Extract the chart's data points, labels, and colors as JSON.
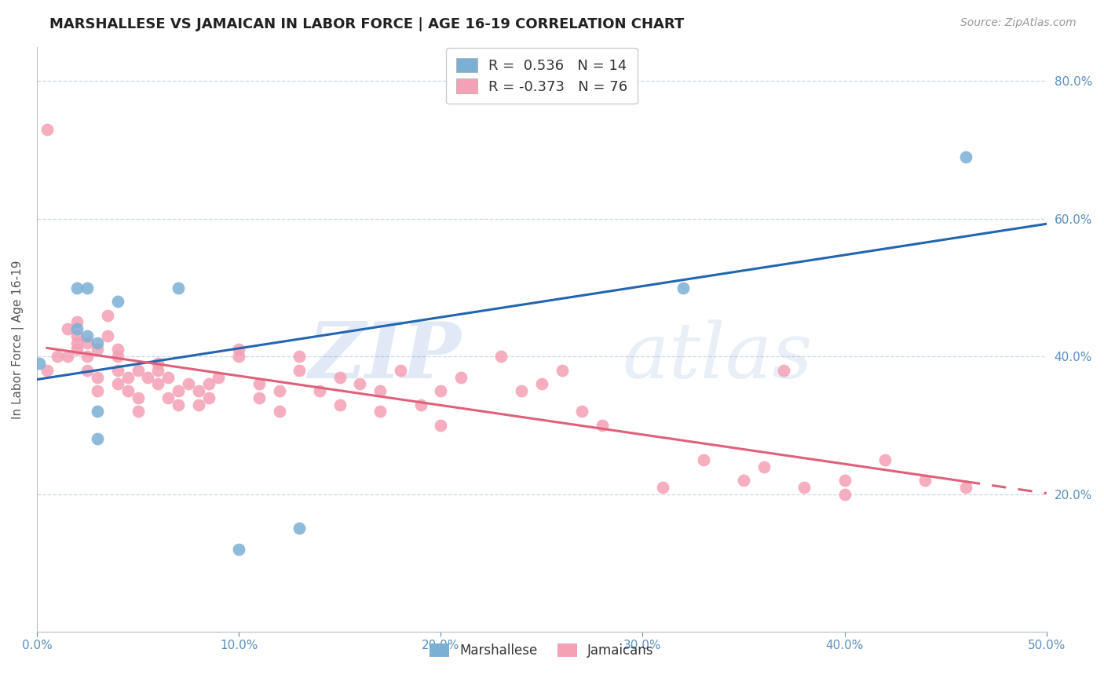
{
  "title": "MARSHALLESE VS JAMAICAN IN LABOR FORCE | AGE 16-19 CORRELATION CHART",
  "source": "Source: ZipAtlas.com",
  "ylabel": "In Labor Force | Age 16-19",
  "xlim": [
    0.0,
    0.5
  ],
  "ylim": [
    0.0,
    0.85
  ],
  "xticks": [
    0.0,
    0.1,
    0.2,
    0.3,
    0.4,
    0.5
  ],
  "yticks": [
    0.2,
    0.4,
    0.6,
    0.8
  ],
  "xtick_labels": [
    "0.0%",
    "10.0%",
    "20.0%",
    "30.0%",
    "40.0%",
    "50.0%"
  ],
  "ytick_labels": [
    "20.0%",
    "40.0%",
    "60.0%",
    "80.0%"
  ],
  "marshallese_x": [
    0.001,
    0.02,
    0.025,
    0.025,
    0.03,
    0.03,
    0.04,
    0.07,
    0.1,
    0.13,
    0.32,
    0.46,
    0.02,
    0.03
  ],
  "marshallese_y": [
    0.39,
    0.5,
    0.43,
    0.5,
    0.28,
    0.42,
    0.48,
    0.5,
    0.12,
    0.15,
    0.5,
    0.69,
    0.44,
    0.32
  ],
  "jamaicans_x": [
    0.005,
    0.01,
    0.015,
    0.015,
    0.02,
    0.02,
    0.02,
    0.02,
    0.025,
    0.025,
    0.025,
    0.03,
    0.03,
    0.03,
    0.035,
    0.035,
    0.04,
    0.04,
    0.04,
    0.04,
    0.045,
    0.045,
    0.05,
    0.05,
    0.05,
    0.055,
    0.06,
    0.06,
    0.06,
    0.065,
    0.065,
    0.07,
    0.07,
    0.075,
    0.08,
    0.08,
    0.085,
    0.085,
    0.09,
    0.1,
    0.1,
    0.11,
    0.11,
    0.12,
    0.12,
    0.13,
    0.13,
    0.14,
    0.15,
    0.15,
    0.16,
    0.17,
    0.17,
    0.18,
    0.19,
    0.2,
    0.2,
    0.21,
    0.23,
    0.24,
    0.25,
    0.26,
    0.27,
    0.28,
    0.31,
    0.33,
    0.35,
    0.36,
    0.37,
    0.38,
    0.4,
    0.4,
    0.42,
    0.44,
    0.46,
    0.005
  ],
  "jamaicans_y": [
    0.38,
    0.4,
    0.4,
    0.44,
    0.41,
    0.42,
    0.43,
    0.45,
    0.38,
    0.4,
    0.42,
    0.35,
    0.37,
    0.41,
    0.43,
    0.46,
    0.36,
    0.38,
    0.4,
    0.41,
    0.35,
    0.37,
    0.32,
    0.34,
    0.38,
    0.37,
    0.36,
    0.38,
    0.39,
    0.34,
    0.37,
    0.33,
    0.35,
    0.36,
    0.33,
    0.35,
    0.34,
    0.36,
    0.37,
    0.4,
    0.41,
    0.34,
    0.36,
    0.32,
    0.35,
    0.38,
    0.4,
    0.35,
    0.33,
    0.37,
    0.36,
    0.32,
    0.35,
    0.38,
    0.33,
    0.3,
    0.35,
    0.37,
    0.4,
    0.35,
    0.36,
    0.38,
    0.32,
    0.3,
    0.21,
    0.25,
    0.22,
    0.24,
    0.38,
    0.21,
    0.22,
    0.2,
    0.25,
    0.22,
    0.21,
    0.73
  ],
  "marshallese_color": "#7bafd4",
  "jamaicans_color": "#f4a0b5",
  "marshallese_line_color": "#2265b0",
  "jamaicans_line_color": "#e0607a",
  "R_marshallese": 0.536,
  "N_marshallese": 14,
  "R_jamaicans": -0.373,
  "N_jamaicans": 76,
  "watermark_zip": "ZIP",
  "watermark_atlas": "atlas",
  "background_color": "#ffffff",
  "title_fontsize": 13,
  "axis_label_fontsize": 11,
  "tick_fontsize": 11,
  "source_fontsize": 10
}
